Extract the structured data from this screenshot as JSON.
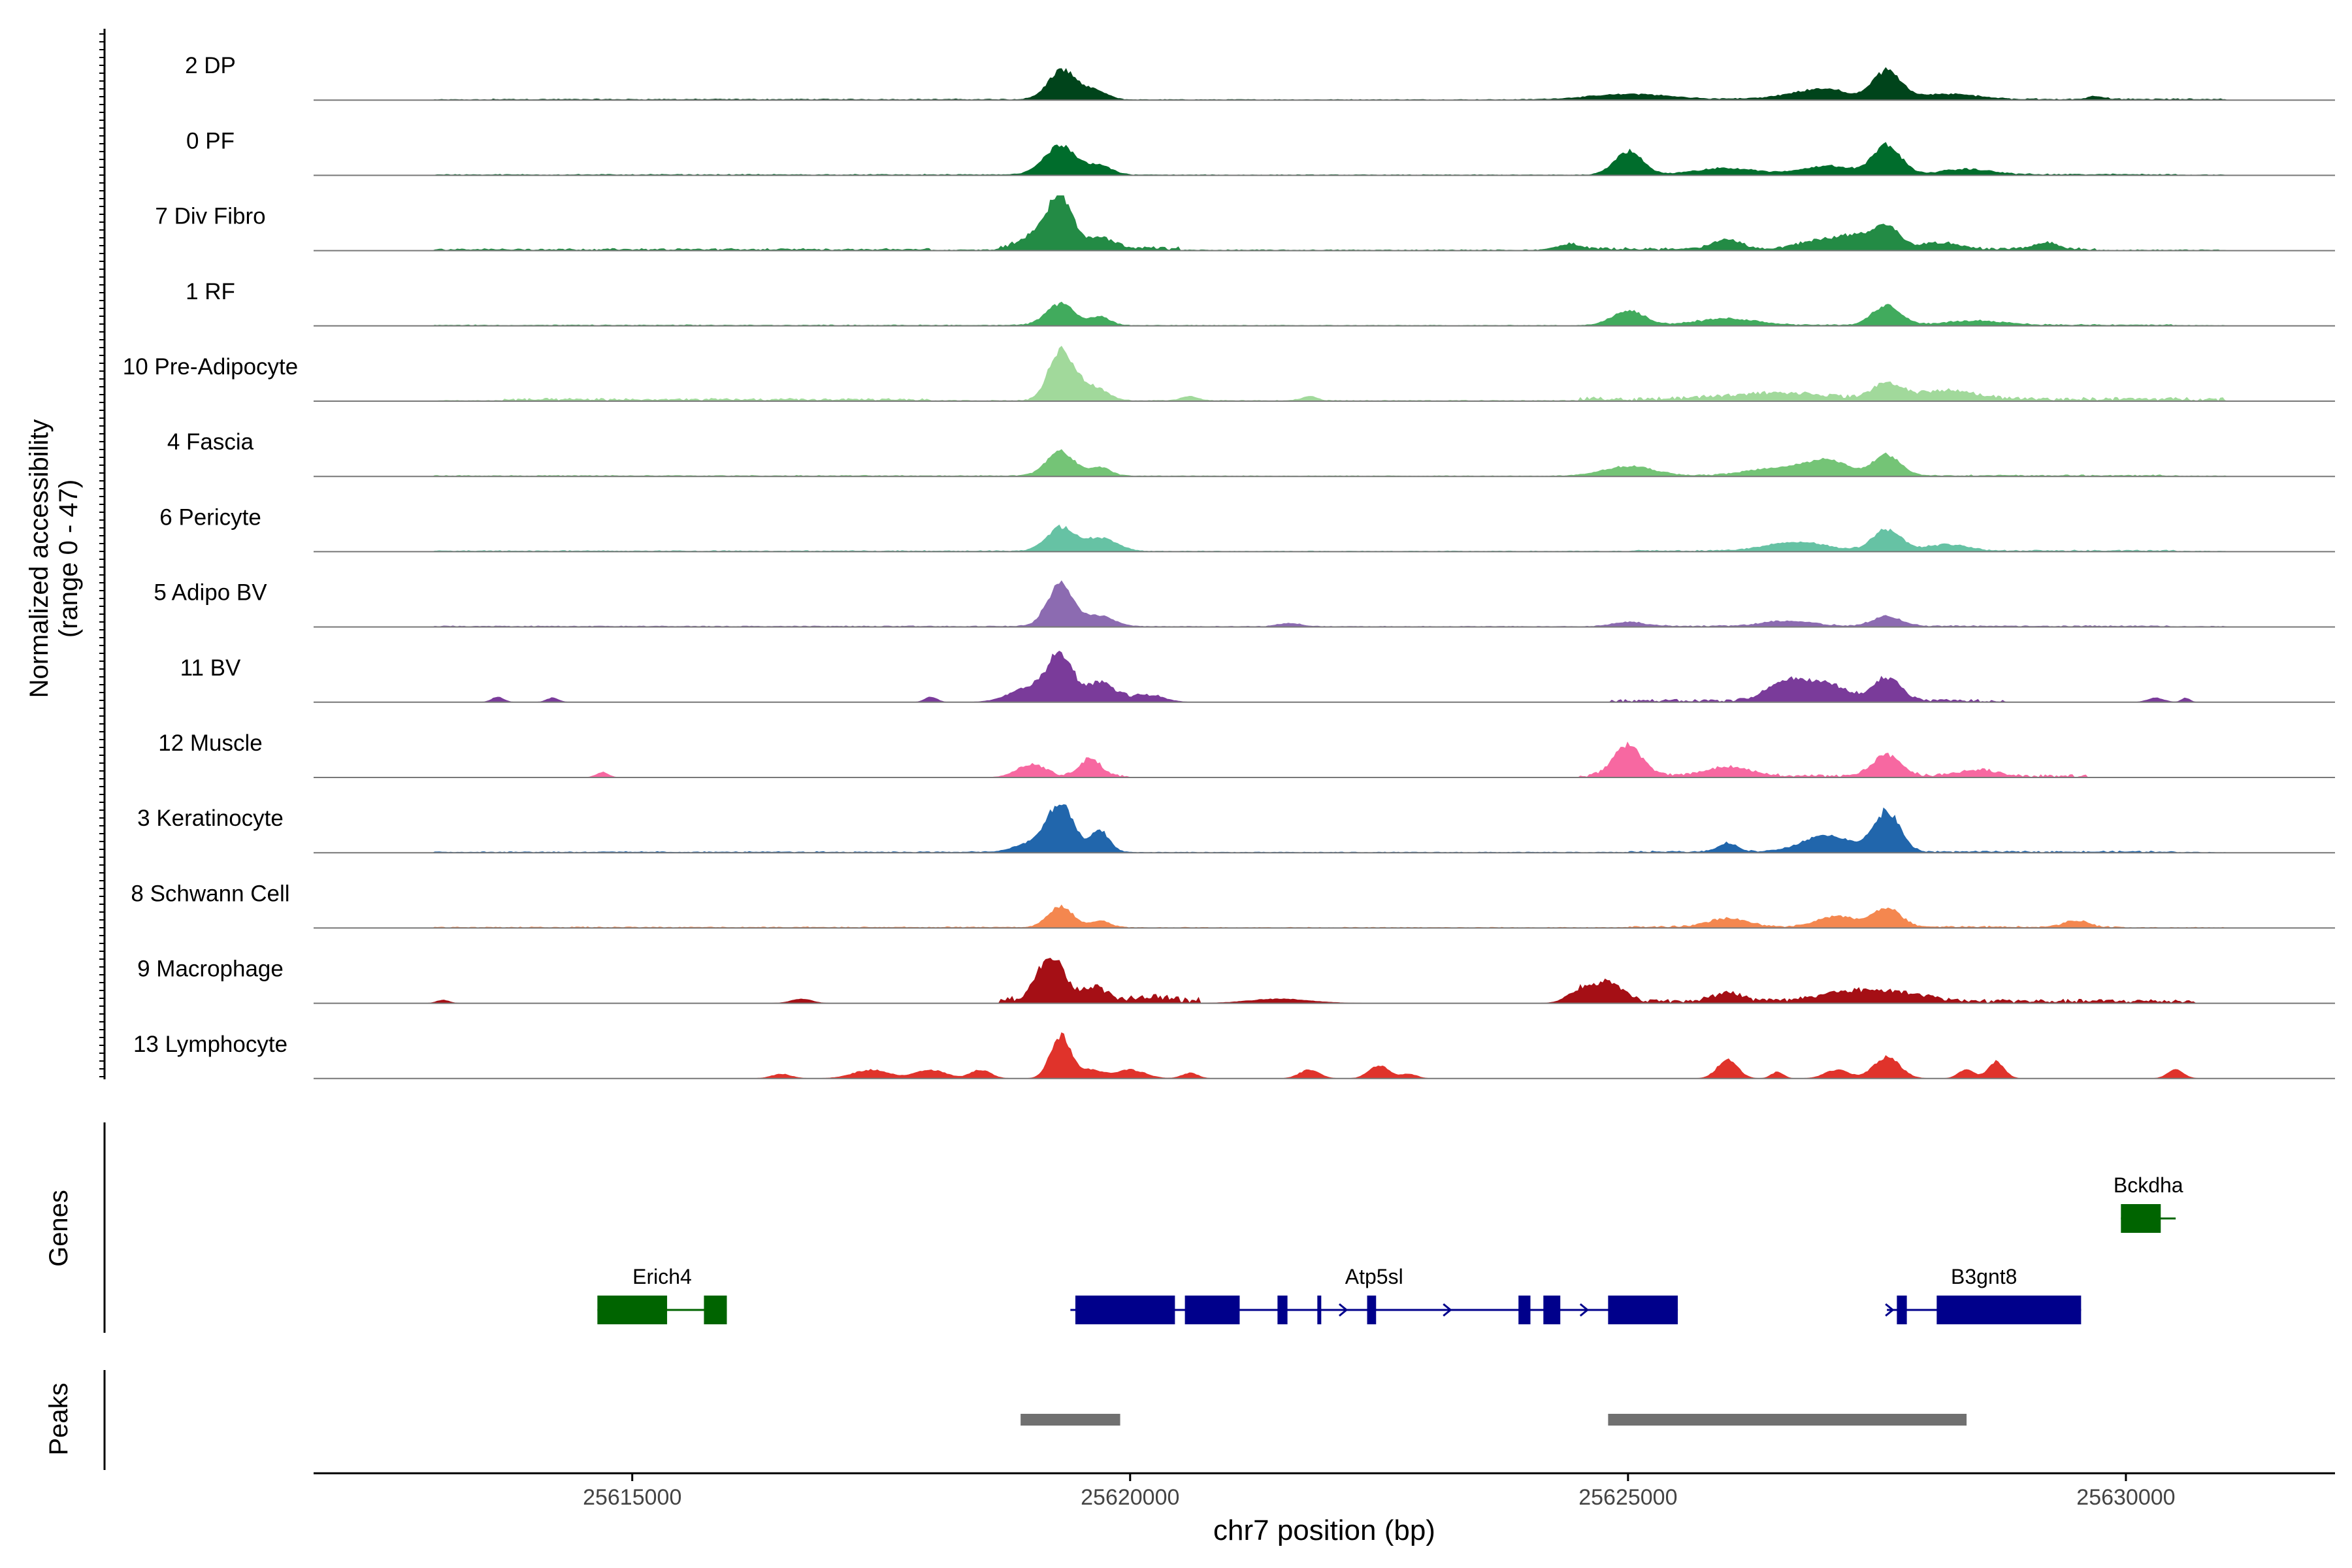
{
  "chart_data": {
    "type": "area",
    "title": "",
    "xlabel": "chr7 position (bp)",
    "ylabel": [
      "Normalized accessibility",
      "(range 0 - 47)"
    ],
    "ylim": [
      0,
      47
    ],
    "xlim": [
      25611800,
      25632100
    ],
    "x_ticks": [
      25615000,
      25620000,
      25625000,
      25630000
    ],
    "x_tick_labels": [
      "25615000",
      "25620000",
      "25625000",
      "25630000"
    ],
    "tracks": [
      {
        "name": "2 DP",
        "color": "#00441b",
        "base": 0.6,
        "bg": [
          [
            25613600,
            25619000,
            0.5
          ],
          [
            25625000,
            25631000,
            0.8
          ]
        ],
        "peaks": [
          [
            25619320,
            28,
            140
          ],
          [
            25619650,
            8,
            120
          ],
          [
            25625000,
            5,
            400
          ],
          [
            25626800,
            5,
            300
          ],
          [
            25627000,
            6,
            200
          ],
          [
            25627600,
            26,
            140
          ],
          [
            25628200,
            5,
            300
          ],
          [
            25629700,
            3,
            80
          ]
        ]
      },
      {
        "name": "0 PF",
        "color": "#006d2c",
        "base": 0.6,
        "bg": [
          [
            25613000,
            25620000,
            0.4
          ],
          [
            25625000,
            25630500,
            0.8
          ]
        ],
        "peaks": [
          [
            25619300,
            27,
            160
          ],
          [
            25619700,
            8,
            120
          ],
          [
            25625000,
            22,
            140
          ],
          [
            25626000,
            6,
            300
          ],
          [
            25627000,
            8,
            250
          ],
          [
            25627600,
            27,
            140
          ],
          [
            25628400,
            5,
            250
          ]
        ]
      },
      {
        "name": "7 Div Fibro",
        "color": "#238b45",
        "base": 0.8,
        "bg": [
          [
            25613000,
            25618000,
            1.2
          ],
          [
            25618700,
            25620500,
            3
          ],
          [
            25624400,
            25629700,
            2.0
          ]
        ],
        "peaks": [
          [
            25619300,
            42,
            120
          ],
          [
            25619100,
            15,
            180
          ],
          [
            25619700,
            10,
            150
          ],
          [
            25624400,
            5,
            120
          ],
          [
            25626000,
            9,
            140
          ],
          [
            25626900,
            8,
            200
          ],
          [
            25627300,
            12,
            180
          ],
          [
            25627600,
            20,
            120
          ],
          [
            25628100,
            6,
            200
          ],
          [
            25629200,
            6,
            120
          ]
        ]
      },
      {
        "name": "1 RF",
        "color": "#41ab5d",
        "base": 0.6,
        "bg": [
          [
            25613000,
            25620000,
            0.4
          ],
          [
            25625000,
            25630500,
            0.8
          ]
        ],
        "peaks": [
          [
            25619300,
            20,
            140
          ],
          [
            25619700,
            8,
            100
          ],
          [
            25625000,
            14,
            160
          ],
          [
            25626000,
            6,
            300
          ],
          [
            25627600,
            18,
            140
          ],
          [
            25628500,
            4,
            300
          ]
        ]
      },
      {
        "name": "10 Pre-Adipocyte",
        "color": "#a1d99b",
        "base": 0.8,
        "bg": [
          [
            25613700,
            25618000,
            1.8
          ],
          [
            25624500,
            25631000,
            2.8
          ]
        ],
        "peaks": [
          [
            25619300,
            47,
            120
          ],
          [
            25619600,
            14,
            150
          ],
          [
            25620600,
            4,
            80
          ],
          [
            25621800,
            4,
            80
          ],
          [
            25626500,
            6,
            500
          ],
          [
            25627600,
            14,
            140
          ],
          [
            25628200,
            8,
            300
          ]
        ]
      },
      {
        "name": "4 Fascia",
        "color": "#74c476",
        "base": 0.6,
        "bg": [
          [
            25613000,
            25620000,
            0.4
          ],
          [
            25625000,
            25630500,
            0.8
          ]
        ],
        "peaks": [
          [
            25619300,
            23,
            140
          ],
          [
            25619700,
            8,
            100
          ],
          [
            25625000,
            9,
            250
          ],
          [
            25626500,
            7,
            300
          ],
          [
            25627000,
            14,
            200
          ],
          [
            25627600,
            19,
            140
          ]
        ]
      },
      {
        "name": "6 Pericyte",
        "color": "#66c2a4",
        "base": 0.6,
        "bg": [
          [
            25613000,
            25620000,
            0.5
          ],
          [
            25625000,
            25630500,
            1.0
          ]
        ],
        "peaks": [
          [
            25619300,
            22,
            140
          ],
          [
            25619700,
            12,
            160
          ],
          [
            25626700,
            8,
            300
          ],
          [
            25627600,
            20,
            140
          ],
          [
            25628200,
            6,
            200
          ]
        ]
      },
      {
        "name": "5 Adipo BV",
        "color": "#8c6bb1",
        "base": 0.6,
        "bg": [
          [
            25613000,
            25620000,
            0.4
          ],
          [
            25625000,
            25630500,
            0.8
          ]
        ],
        "peaks": [
          [
            25619300,
            40,
            130
          ],
          [
            25619700,
            10,
            140
          ],
          [
            25621600,
            3,
            120
          ],
          [
            25625000,
            4,
            160
          ],
          [
            25626600,
            5,
            250
          ],
          [
            25627600,
            9,
            140
          ]
        ]
      },
      {
        "name": "11 BV",
        "color": "#7a3b9a",
        "base": 0.0,
        "bg": [
          [
            25619000,
            25620300,
            3.5
          ],
          [
            25624800,
            25628800,
            2.5
          ]
        ],
        "peaks": [
          [
            25613650,
            5,
            60
          ],
          [
            25614200,
            4,
            60
          ],
          [
            25618000,
            5,
            60
          ],
          [
            25619300,
            40,
            120
          ],
          [
            25619000,
            14,
            200
          ],
          [
            25619700,
            16,
            150
          ],
          [
            25620200,
            6,
            150
          ],
          [
            25626600,
            18,
            200
          ],
          [
            25627000,
            15,
            200
          ],
          [
            25627600,
            22,
            140
          ],
          [
            25630300,
            4,
            80
          ],
          [
            25630600,
            4,
            40
          ]
        ]
      },
      {
        "name": "12 Muscle",
        "color": "#f768a1",
        "base": 0.0,
        "bg": [
          [
            25619000,
            25620000,
            2.5
          ],
          [
            25624500,
            25629600,
            2.5
          ]
        ],
        "peaks": [
          [
            25614700,
            5,
            60
          ],
          [
            25619000,
            12,
            140
          ],
          [
            25619600,
            17,
            100
          ],
          [
            25625000,
            30,
            140
          ],
          [
            25626000,
            8,
            250
          ],
          [
            25627600,
            20,
            140
          ],
          [
            25628500,
            6,
            200
          ]
        ]
      },
      {
        "name": "3 Keratinocyte",
        "color": "#2166ac",
        "base": 0.6,
        "bg": [
          [
            25613000,
            25620000,
            0.5
          ],
          [
            25625000,
            25630500,
            1.0
          ]
        ],
        "peaks": [
          [
            25619300,
            45,
            130
          ],
          [
            25619000,
            8,
            160
          ],
          [
            25619700,
            20,
            90
          ],
          [
            25626000,
            8,
            100
          ],
          [
            25627000,
            15,
            250
          ],
          [
            25627600,
            37,
            130
          ]
        ]
      },
      {
        "name": "8 Schwann Cell",
        "color": "#f4874f",
        "base": 0.6,
        "bg": [
          [
            25613000,
            25620000,
            0.5
          ],
          [
            25625000,
            25630000,
            1.2
          ]
        ],
        "peaks": [
          [
            25619300,
            20,
            120
          ],
          [
            25619700,
            6,
            100
          ],
          [
            25626000,
            8,
            200
          ],
          [
            25627100,
            10,
            200
          ],
          [
            25627600,
            17,
            140
          ],
          [
            25629500,
            6,
            120
          ]
        ]
      },
      {
        "name": "9 Macrophage",
        "color": "#a50f15",
        "base": 0.0,
        "bg": [
          [
            25618700,
            25620700,
            5
          ],
          [
            25624500,
            25630700,
            3.5
          ]
        ],
        "peaks": [
          [
            25613100,
            3,
            60
          ],
          [
            25616700,
            4,
            100
          ],
          [
            25619200,
            40,
            140
          ],
          [
            25619650,
            12,
            120
          ],
          [
            25620200,
            4,
            150
          ],
          [
            25621500,
            4,
            300
          ],
          [
            25624500,
            10,
            120
          ],
          [
            25624800,
            18,
            150
          ],
          [
            25626000,
            8,
            150
          ],
          [
            25627200,
            8,
            300
          ],
          [
            25627700,
            7,
            300
          ]
        ]
      },
      {
        "name": "13 Lymphocyte",
        "color": "#e0332b",
        "base": 0.0,
        "bg": [],
        "peaks": [
          [
            25616500,
            4,
            100
          ],
          [
            25617400,
            8,
            180
          ],
          [
            25618000,
            8,
            150
          ],
          [
            25618500,
            8,
            100
          ],
          [
            25619300,
            40,
            100
          ],
          [
            25619600,
            8,
            120
          ],
          [
            25620000,
            8,
            150
          ],
          [
            25620600,
            5,
            80
          ],
          [
            25621800,
            8,
            100
          ],
          [
            25622500,
            12,
            100
          ],
          [
            25622800,
            4,
            80
          ],
          [
            25626000,
            18,
            100
          ],
          [
            25626500,
            6,
            60
          ],
          [
            25627100,
            8,
            120
          ],
          [
            25627600,
            20,
            130
          ],
          [
            25628400,
            8,
            80
          ],
          [
            25628700,
            16,
            80
          ],
          [
            25630500,
            8,
            80
          ]
        ]
      }
    ],
    "genes_label": "Genes",
    "peaks_label": "Peaks",
    "genes": [
      {
        "name": "Bckdha",
        "color": "#006400",
        "row": 0,
        "strand": "+",
        "start": 25629950,
        "end": 25630500,
        "exons": [
          [
            25629950,
            25630350
          ]
        ]
      },
      {
        "name": "Erich4",
        "color": "#006400",
        "row": 1,
        "strand": "+",
        "start": 25614650,
        "end": 25615950,
        "exons": [
          [
            25614650,
            25615350
          ],
          [
            25615720,
            25615950
          ]
        ]
      },
      {
        "name": "Atp5sl",
        "color": "#00008b",
        "row": 1,
        "strand": "+",
        "start": 25619400,
        "end": 25625500,
        "exons": [
          [
            25619450,
            25620450
          ],
          [
            25620550,
            25621100
          ],
          [
            25621480,
            25621580
          ],
          [
            25621880,
            25621900
          ],
          [
            25622380,
            25622470
          ],
          [
            25623900,
            25624020
          ],
          [
            25624150,
            25624320
          ],
          [
            25624800,
            25625500
          ]
        ]
      },
      {
        "name": "B3gnt8",
        "color": "#00008b",
        "row": 1,
        "strand": "+",
        "start": 25627600,
        "end": 25629550,
        "exons": [
          [
            25627700,
            25627800
          ],
          [
            25628100,
            25629550
          ]
        ]
      }
    ],
    "peak_regions": [
      [
        25618900,
        25619900
      ],
      [
        25624800,
        25628400
      ]
    ],
    "peak_color": "#707070"
  }
}
